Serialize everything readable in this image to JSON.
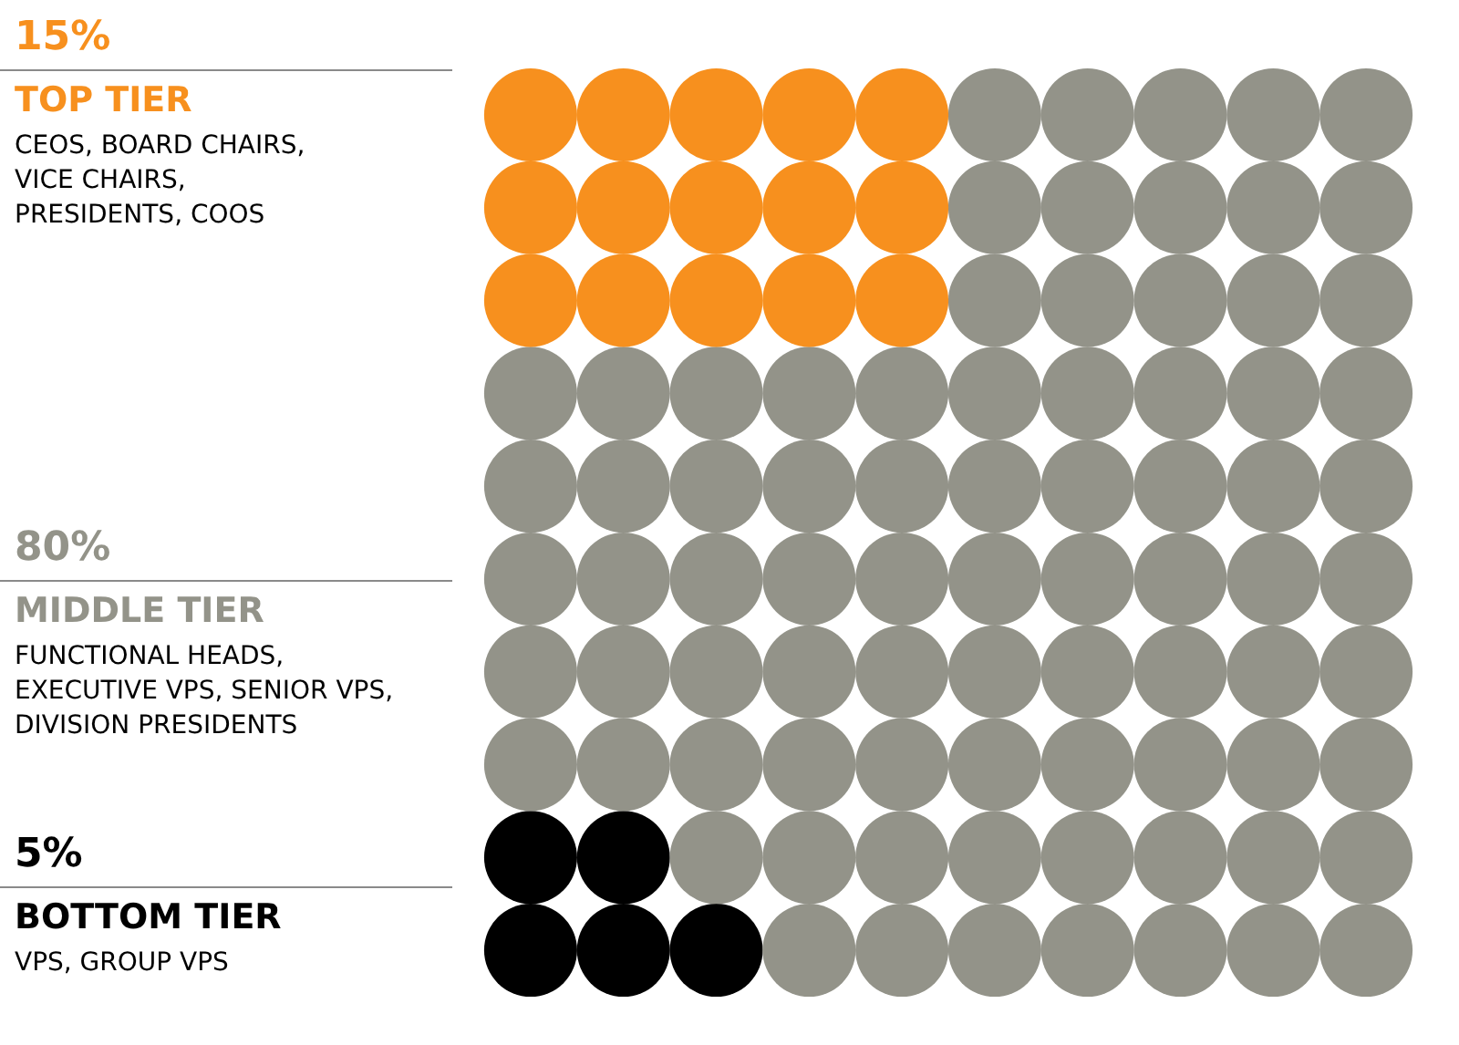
{
  "chart_data": {
    "type": "other",
    "categories": [
      "TOP TIER",
      "MIDDLE TIER",
      "BOTTOM TIER"
    ],
    "values": [
      15,
      80,
      5
    ],
    "value_labels": [
      "15%",
      "80%",
      "5%"
    ],
    "colors": [
      "#f7901e",
      "#939389",
      "#000000"
    ],
    "annotations": [
      "CEOS, BOARD CHAIRS, VICE CHAIRS, PRESIDENTS, COOS",
      "FUNCTIONAL HEADS, EXECUTIVE VPS, SENIOR VPS, DIVISION PRESIDENTS",
      "VPS, GROUP VPS"
    ]
  }
}
